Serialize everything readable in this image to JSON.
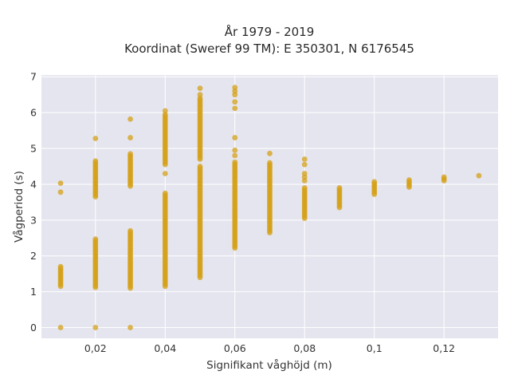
{
  "chart_data": {
    "type": "scatter",
    "title_line1": "År 1979 - 2019",
    "title_line2": "Koordinat (Sweref 99 TM): E 350301, N 6176545",
    "xlabel": "Signifikant våghöjd (m)",
    "ylabel": "Vågperiod (s)",
    "xlim": [
      0.0045,
      0.1355
    ],
    "ylim": [
      -0.3,
      7.05
    ],
    "x_ticks": [
      {
        "value": 0.02,
        "label": "0,02"
      },
      {
        "value": 0.04,
        "label": "0,04"
      },
      {
        "value": 0.06,
        "label": "0,06"
      },
      {
        "value": 0.08,
        "label": "0,08"
      },
      {
        "value": 0.1,
        "label": "0,1"
      },
      {
        "value": 0.12,
        "label": "0,12"
      }
    ],
    "y_ticks": [
      {
        "value": 0,
        "label": "0"
      },
      {
        "value": 1,
        "label": "1"
      },
      {
        "value": 2,
        "label": "2"
      },
      {
        "value": 3,
        "label": "3"
      },
      {
        "value": 4,
        "label": "4"
      },
      {
        "value": 5,
        "label": "5"
      },
      {
        "value": 6,
        "label": "6"
      },
      {
        "value": 7,
        "label": "7"
      }
    ],
    "grid": true,
    "marker_color": "#d4a017",
    "background_color": "#e5e5ef",
    "grid_color": "#ffffff",
    "columns": [
      {
        "x": 0.01,
        "ranges": [
          [
            1.15,
            1.7
          ]
        ],
        "points": [
          0,
          3.78,
          4.03
        ]
      },
      {
        "x": 0.02,
        "ranges": [
          [
            1.12,
            2.5
          ],
          [
            3.65,
            4.65
          ]
        ],
        "points": [
          0,
          5.28
        ]
      },
      {
        "x": 0.03,
        "ranges": [
          [
            1.1,
            2.72
          ],
          [
            3.95,
            4.85
          ]
        ],
        "points": [
          0,
          5.3,
          5.82
        ]
      },
      {
        "x": 0.04,
        "ranges": [
          [
            1.15,
            3.75
          ],
          [
            4.55,
            5.95
          ]
        ],
        "points": [
          4.3,
          6.05
        ]
      },
      {
        "x": 0.05,
        "ranges": [
          [
            1.4,
            4.5
          ],
          [
            4.7,
            6.4
          ]
        ],
        "points": [
          6.5,
          6.68
        ]
      },
      {
        "x": 0.06,
        "ranges": [
          [
            2.22,
            4.65
          ]
        ],
        "points": [
          4.8,
          4.95,
          5.3,
          6.12,
          6.3,
          6.5,
          6.6,
          6.7
        ]
      },
      {
        "x": 0.07,
        "ranges": [
          [
            2.65,
            4.62
          ]
        ],
        "points": [
          4.86
        ]
      },
      {
        "x": 0.08,
        "ranges": [
          [
            3.05,
            3.92
          ]
        ],
        "points": [
          4.1,
          4.2,
          4.3,
          4.55,
          4.7
        ]
      },
      {
        "x": 0.09,
        "ranges": [
          [
            3.35,
            3.9
          ]
        ],
        "points": []
      },
      {
        "x": 0.1,
        "ranges": [
          [
            3.72,
            4.08
          ]
        ],
        "points": []
      },
      {
        "x": 0.11,
        "ranges": [
          [
            3.92,
            4.12
          ]
        ],
        "points": []
      },
      {
        "x": 0.12,
        "ranges": [
          [
            4.1,
            4.2
          ]
        ],
        "points": []
      },
      {
        "x": 0.13,
        "ranges": [],
        "points": [
          4.24
        ]
      }
    ]
  }
}
